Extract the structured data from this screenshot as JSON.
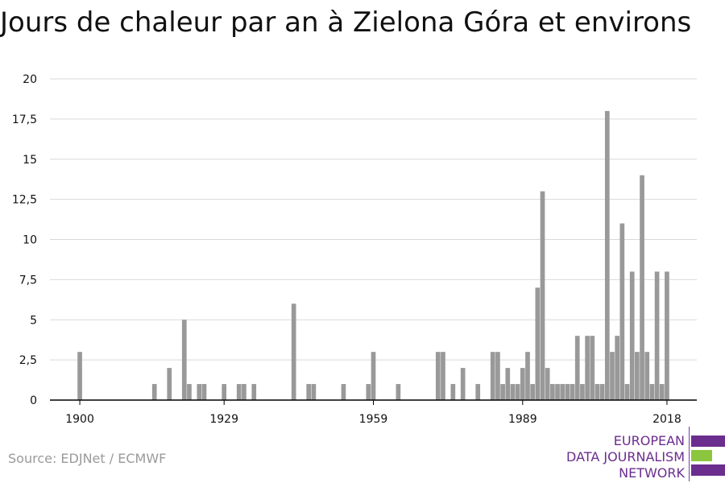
{
  "title": "Jours de chaleur par an à Zielona Góra et environs",
  "source": "Source: EDJNet / ECMWF",
  "logo": {
    "lines": [
      "EUROPEAN",
      "DATA JOURNALISM",
      "NETWORK"
    ],
    "colors": [
      "#6b2d8e",
      "#8cc63f",
      "#6b2d8e"
    ]
  },
  "colors": {
    "bar": "#999999",
    "grid": "#d9d9d9",
    "axis": "#000000",
    "text": "#111111"
  },
  "chart_data": {
    "type": "bar",
    "title": "Jours de chaleur par an à Zielona Góra et environs",
    "xlabel": "",
    "ylabel": "",
    "ylim": [
      0,
      20
    ],
    "yticks": [
      "0",
      "2,5",
      "5",
      "7,5",
      "10",
      "12,5",
      "15",
      "17,5",
      "20"
    ],
    "ytick_values": [
      0,
      2.5,
      5,
      7.5,
      10,
      12.5,
      15,
      17.5,
      20
    ],
    "xticks": [
      1900,
      1929,
      1959,
      1989,
      2018
    ],
    "xlim": [
      1894,
      2024
    ],
    "grid": true,
    "x": [
      1900,
      1915,
      1918,
      1921,
      1922,
      1924,
      1925,
      1929,
      1932,
      1933,
      1935,
      1943,
      1946,
      1947,
      1953,
      1958,
      1959,
      1964,
      1972,
      1973,
      1975,
      1977,
      1980,
      1983,
      1984,
      1985,
      1986,
      1987,
      1988,
      1989,
      1990,
      1991,
      1992,
      1993,
      1994,
      1995,
      1996,
      1997,
      1998,
      1999,
      2000,
      2001,
      2002,
      2003,
      2004,
      2005,
      2006,
      2007,
      2008,
      2009,
      2010,
      2011,
      2012,
      2013,
      2014,
      2015,
      2016,
      2017,
      2018
    ],
    "values": [
      3,
      1,
      2,
      5,
      1,
      1,
      1,
      1,
      1,
      1,
      1,
      6,
      1,
      1,
      1,
      1,
      3,
      1,
      3,
      3,
      1,
      2,
      1,
      3,
      3,
      1,
      2,
      1,
      1,
      2,
      3,
      1,
      7,
      13,
      2,
      1,
      1,
      1,
      1,
      1,
      4,
      1,
      4,
      4,
      1,
      1,
      18,
      3,
      4,
      11,
      1,
      8,
      3,
      14,
      3,
      1,
      8,
      1,
      8
    ]
  }
}
